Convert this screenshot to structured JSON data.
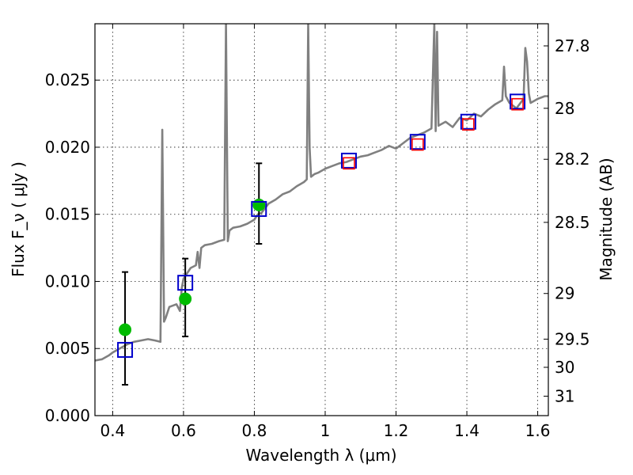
{
  "chart_data": {
    "type": "scatter",
    "xlabel": "Wavelength  λ (μm)",
    "ylabel": "Flux  F_ν  ( μJy )",
    "y2label": "Magnitude (AB)",
    "xlim": [
      0.35,
      1.63
    ],
    "ylim": [
      0.0,
      0.0292
    ],
    "grid": true,
    "x_ticks": [
      {
        "value": 0.4,
        "label": "0.4"
      },
      {
        "value": 0.6,
        "label": "0.6"
      },
      {
        "value": 0.8,
        "label": "0.8"
      },
      {
        "value": 1.0,
        "label": "1"
      },
      {
        "value": 1.2,
        "label": "1.2"
      },
      {
        "value": 1.4,
        "label": "1.4"
      },
      {
        "value": 1.6,
        "label": "1.6"
      }
    ],
    "y_ticks": [
      {
        "value": 0.0,
        "label": "0.000"
      },
      {
        "value": 0.005,
        "label": "0.005"
      },
      {
        "value": 0.01,
        "label": "0.010"
      },
      {
        "value": 0.015,
        "label": "0.015"
      },
      {
        "value": 0.02,
        "label": "0.020"
      },
      {
        "value": 0.025,
        "label": "0.025"
      }
    ],
    "y2_ticks": [
      {
        "flux": 0.02755,
        "label": "27.8"
      },
      {
        "flux": 0.0229,
        "label": "28"
      },
      {
        "flux": 0.0191,
        "label": "28.2"
      },
      {
        "flux": 0.0144,
        "label": "28.5"
      },
      {
        "flux": 0.0091,
        "label": "29"
      },
      {
        "flux": 0.0057,
        "label": "29.5"
      },
      {
        "flux": 0.0036,
        "label": "30"
      },
      {
        "flux": 0.00145,
        "label": "31"
      }
    ],
    "series": [
      {
        "kind": "spectrum",
        "color": "#808080",
        "x": [
          0.35,
          0.37,
          0.39,
          0.4,
          0.42,
          0.44,
          0.46,
          0.48,
          0.5,
          0.52,
          0.535,
          0.54,
          0.545,
          0.55,
          0.56,
          0.58,
          0.59,
          0.595,
          0.6,
          0.62,
          0.635,
          0.64,
          0.645,
          0.65,
          0.66,
          0.68,
          0.7,
          0.715,
          0.72,
          0.725,
          0.73,
          0.74,
          0.76,
          0.78,
          0.8,
          0.81,
          0.82,
          0.84,
          0.86,
          0.88,
          0.9,
          0.92,
          0.94,
          0.948,
          0.952,
          0.956,
          0.96,
          0.97,
          0.98,
          1.0,
          1.02,
          1.04,
          1.06,
          1.08,
          1.1,
          1.12,
          1.14,
          1.16,
          1.18,
          1.2,
          1.22,
          1.24,
          1.26,
          1.28,
          1.3,
          1.308,
          1.312,
          1.316,
          1.32,
          1.34,
          1.36,
          1.38,
          1.4,
          1.42,
          1.44,
          1.46,
          1.48,
          1.5,
          1.505,
          1.51,
          1.52,
          1.54,
          1.56,
          1.565,
          1.57,
          1.575,
          1.58,
          1.6,
          1.62,
          1.63
        ],
        "y": [
          0.0041,
          0.0042,
          0.0045,
          0.0047,
          0.005,
          0.0053,
          0.0055,
          0.0056,
          0.0057,
          0.0056,
          0.0055,
          0.0213,
          0.007,
          0.0073,
          0.0081,
          0.0083,
          0.0078,
          0.0095,
          0.0102,
          0.011,
          0.0112,
          0.0122,
          0.011,
          0.0125,
          0.0127,
          0.0128,
          0.013,
          0.0131,
          0.0292,
          0.013,
          0.0138,
          0.014,
          0.0141,
          0.0143,
          0.0146,
          0.015,
          0.0151,
          0.0158,
          0.0161,
          0.0165,
          0.0167,
          0.0171,
          0.0174,
          0.0176,
          0.0292,
          0.02,
          0.0178,
          0.018,
          0.0181,
          0.0184,
          0.0186,
          0.0188,
          0.0189,
          0.0191,
          0.0193,
          0.0194,
          0.0196,
          0.0198,
          0.0201,
          0.0199,
          0.0203,
          0.0207,
          0.0209,
          0.0211,
          0.0214,
          0.0292,
          0.0212,
          0.0286,
          0.0216,
          0.0219,
          0.0215,
          0.0222,
          0.022,
          0.0225,
          0.0223,
          0.0228,
          0.0232,
          0.0235,
          0.026,
          0.0238,
          0.0233,
          0.0229,
          0.0236,
          0.0274,
          0.0264,
          0.024,
          0.0233,
          0.0236,
          0.0238,
          0.0238
        ]
      },
      {
        "kind": "observed",
        "marker": "circle",
        "color": "#00bb00",
        "points": [
          {
            "x": 0.435,
            "y": 0.0064,
            "ylo": 0.0023,
            "yhi": 0.0107
          },
          {
            "x": 0.605,
            "y": 0.0087,
            "ylo": 0.0059,
            "yhi": 0.0117
          },
          {
            "x": 0.813,
            "y": 0.0157,
            "ylo": 0.0128,
            "yhi": 0.0188
          }
        ]
      },
      {
        "kind": "model-photometry",
        "marker": "square",
        "color": "#0000cc",
        "points": [
          {
            "x": 0.435,
            "y": 0.0049
          },
          {
            "x": 0.605,
            "y": 0.0099
          },
          {
            "x": 0.813,
            "y": 0.0154
          },
          {
            "x": 1.067,
            "y": 0.019
          },
          {
            "x": 1.261,
            "y": 0.0204
          },
          {
            "x": 1.404,
            "y": 0.0219
          },
          {
            "x": 1.543,
            "y": 0.0234
          }
        ]
      },
      {
        "kind": "model-photometry-ir",
        "marker": "square",
        "color": "#ff0000",
        "points": [
          {
            "x": 1.067,
            "y": 0.0188
          },
          {
            "x": 1.261,
            "y": 0.0202
          },
          {
            "x": 1.404,
            "y": 0.0217
          },
          {
            "x": 1.543,
            "y": 0.0232
          }
        ]
      }
    ]
  }
}
